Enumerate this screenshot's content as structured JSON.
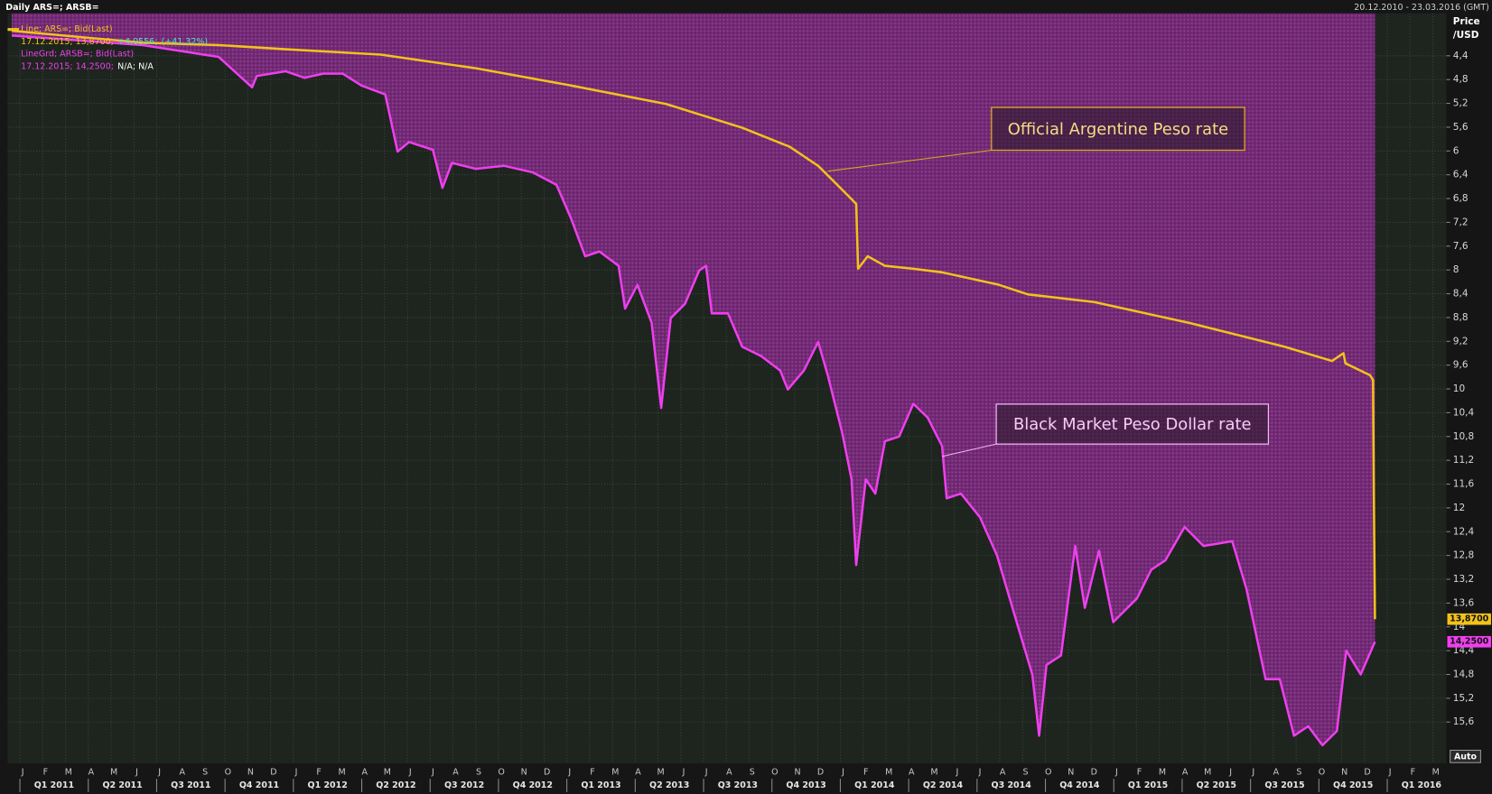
{
  "header": {
    "title": "Daily ARS=; ARSB=",
    "date_range": "20.12.2010 - 23.03.2016 (GMT)",
    "auto_button": "Auto"
  },
  "chart_data": {
    "type": "line",
    "ylabel": "Price",
    "yunit": "/USD",
    "xlim": [
      2010.955,
      2016.216
    ],
    "ylim": [
      3.75,
      16.25
    ],
    "y_inverted": true,
    "grid": true,
    "yticks": [
      {
        "value": 4.4,
        "label": "4,4"
      },
      {
        "value": 4.8,
        "label": "4,8"
      },
      {
        "value": 5.2,
        "label": "5,2"
      },
      {
        "value": 5.6,
        "label": "5,6"
      },
      6,
      {
        "value": 6.4,
        "label": "6,4"
      },
      {
        "value": 6.8,
        "label": "6,8"
      },
      {
        "value": 7.2,
        "label": "7,2"
      },
      {
        "value": 7.6,
        "label": "7,6"
      },
      8,
      {
        "value": 8.4,
        "label": "8,4"
      },
      {
        "value": 8.8,
        "label": "8,8"
      },
      {
        "value": 9.2,
        "label": "9,2"
      },
      {
        "value": 9.6,
        "label": "9,6"
      },
      10,
      {
        "value": 10.4,
        "label": "10,4"
      },
      {
        "value": 10.8,
        "label": "10,8"
      },
      {
        "value": 11.2,
        "label": "11,2"
      },
      {
        "value": 11.6,
        "label": "11,6"
      },
      12,
      {
        "value": 12.4,
        "label": "12,4"
      },
      {
        "value": 12.8,
        "label": "12,8"
      },
      {
        "value": 13.2,
        "label": "13,2"
      },
      {
        "value": 13.6,
        "label": "13,6"
      },
      14,
      {
        "value": 14.4,
        "label": "14,4"
      },
      {
        "value": 14.8,
        "label": "14,8"
      },
      {
        "value": 15.2,
        "label": "15,2"
      },
      {
        "value": 15.6,
        "label": "15,6"
      }
    ],
    "xticks": [
      {
        "value": 2011.0,
        "label": "J"
      },
      {
        "value": 2011.083,
        "label": "F"
      },
      {
        "value": 2011.167,
        "label": "M"
      },
      {
        "value": 2011.25,
        "label": "A"
      },
      {
        "value": 2011.333,
        "label": "M"
      },
      {
        "value": 2011.417,
        "label": "J"
      },
      {
        "value": 2011.5,
        "label": "J"
      },
      {
        "value": 2011.583,
        "label": "A"
      },
      {
        "value": 2011.667,
        "label": "S"
      },
      {
        "value": 2011.75,
        "label": "O"
      },
      {
        "value": 2011.833,
        "label": "N"
      },
      {
        "value": 2011.917,
        "label": "D"
      },
      {
        "value": 2012.0,
        "label": "J"
      },
      {
        "value": 2012.083,
        "label": "F"
      },
      {
        "value": 2012.167,
        "label": "M"
      },
      {
        "value": 2012.25,
        "label": "A"
      },
      {
        "value": 2012.333,
        "label": "M"
      },
      {
        "value": 2012.417,
        "label": "J"
      },
      {
        "value": 2012.5,
        "label": "J"
      },
      {
        "value": 2012.583,
        "label": "A"
      },
      {
        "value": 2012.667,
        "label": "S"
      },
      {
        "value": 2012.75,
        "label": "O"
      },
      {
        "value": 2012.833,
        "label": "N"
      },
      {
        "value": 2012.917,
        "label": "D"
      },
      {
        "value": 2013.0,
        "label": "J"
      },
      {
        "value": 2013.083,
        "label": "F"
      },
      {
        "value": 2013.167,
        "label": "M"
      },
      {
        "value": 2013.25,
        "label": "A"
      },
      {
        "value": 2013.333,
        "label": "M"
      },
      {
        "value": 2013.417,
        "label": "J"
      },
      {
        "value": 2013.5,
        "label": "J"
      },
      {
        "value": 2013.583,
        "label": "A"
      },
      {
        "value": 2013.667,
        "label": "S"
      },
      {
        "value": 2013.75,
        "label": "O"
      },
      {
        "value": 2013.833,
        "label": "N"
      },
      {
        "value": 2013.917,
        "label": "D"
      },
      {
        "value": 2014.0,
        "label": "J"
      },
      {
        "value": 2014.083,
        "label": "F"
      },
      {
        "value": 2014.167,
        "label": "M"
      },
      {
        "value": 2014.25,
        "label": "A"
      },
      {
        "value": 2014.333,
        "label": "M"
      },
      {
        "value": 2014.417,
        "label": "J"
      },
      {
        "value": 2014.5,
        "label": "J"
      },
      {
        "value": 2014.583,
        "label": "A"
      },
      {
        "value": 2014.667,
        "label": "S"
      },
      {
        "value": 2014.75,
        "label": "O"
      },
      {
        "value": 2014.833,
        "label": "N"
      },
      {
        "value": 2014.917,
        "label": "D"
      },
      {
        "value": 2015.0,
        "label": "J"
      },
      {
        "value": 2015.083,
        "label": "F"
      },
      {
        "value": 2015.167,
        "label": "M"
      },
      {
        "value": 2015.25,
        "label": "A"
      },
      {
        "value": 2015.333,
        "label": "M"
      },
      {
        "value": 2015.417,
        "label": "J"
      },
      {
        "value": 2015.5,
        "label": "J"
      },
      {
        "value": 2015.583,
        "label": "A"
      },
      {
        "value": 2015.667,
        "label": "S"
      },
      {
        "value": 2015.75,
        "label": "O"
      },
      {
        "value": 2015.833,
        "label": "N"
      },
      {
        "value": 2015.917,
        "label": "D"
      },
      {
        "value": 2016.0,
        "label": "J"
      },
      {
        "value": 2016.083,
        "label": "F"
      },
      {
        "value": 2016.167,
        "label": "M"
      }
    ],
    "quarter_ticks": [
      {
        "value": 2011.125,
        "label": "Q1 2011"
      },
      {
        "value": 2011.375,
        "label": "Q2 2011"
      },
      {
        "value": 2011.625,
        "label": "Q3 2011"
      },
      {
        "value": 2011.875,
        "label": "Q4 2011"
      },
      {
        "value": 2012.125,
        "label": "Q1 2012"
      },
      {
        "value": 2012.375,
        "label": "Q2 2012"
      },
      {
        "value": 2012.625,
        "label": "Q3 2012"
      },
      {
        "value": 2012.875,
        "label": "Q4 2012"
      },
      {
        "value": 2013.125,
        "label": "Q1 2013"
      },
      {
        "value": 2013.375,
        "label": "Q2 2013"
      },
      {
        "value": 2013.625,
        "label": "Q3 2013"
      },
      {
        "value": 2013.875,
        "label": "Q4 2013"
      },
      {
        "value": 2014.125,
        "label": "Q1 2014"
      },
      {
        "value": 2014.375,
        "label": "Q2 2014"
      },
      {
        "value": 2014.625,
        "label": "Q3 2014"
      },
      {
        "value": 2014.875,
        "label": "Q4 2014"
      },
      {
        "value": 2015.125,
        "label": "Q1 2015"
      },
      {
        "value": 2015.375,
        "label": "Q2 2015"
      },
      {
        "value": 2015.625,
        "label": "Q3 2015"
      },
      {
        "value": 2015.875,
        "label": "Q4 2015"
      },
      {
        "value": 2016.125,
        "label": "Q1 2016"
      }
    ],
    "series": [
      {
        "name": "Line; ARS=; Bid(Last)",
        "color": "#f2c21b",
        "fill_above": false,
        "details": [
          {
            "text": "17.12.2015; 13,8700;",
            "color": "#f2c21b"
          },
          {
            "text": "+4,0556;",
            "color": "#4fe3c6"
          },
          {
            "text": "(+41,32%)",
            "color": "#4fe3c6"
          }
        ],
        "value_label": "13,8700",
        "x": [
          2010.97,
          2011.449,
          2011.727,
          2011.971,
          2012.319,
          2012.667,
          2013.015,
          2013.363,
          2013.641,
          2013.815,
          2013.919,
          2013.989,
          2014.041,
          2014.058,
          2014.065,
          2014.1,
          2014.163,
          2014.267,
          2014.372,
          2014.58,
          2014.685,
          2014.928,
          2015.276,
          2015.624,
          2015.798,
          2015.84,
          2015.847,
          2015.937,
          2015.948,
          2015.951,
          2015.955
        ],
        "values": [
          3.98,
          4.18,
          4.22,
          4.29,
          4.38,
          4.61,
          4.9,
          5.21,
          5.61,
          5.93,
          6.25,
          6.57,
          6.81,
          6.89,
          7.98,
          7.77,
          7.93,
          7.98,
          8.04,
          8.25,
          8.41,
          8.54,
          8.89,
          9.29,
          9.53,
          9.4,
          9.57,
          9.77,
          9.85,
          11.76,
          13.87
        ]
      },
      {
        "name": "LineGrd; ARSB=; Bid(Last)",
        "color": "#ee3fee",
        "fill_above": true,
        "details": [
          {
            "text": "17.12.2015; 14,2500;",
            "color": "#ee3fee"
          },
          {
            "text": "N/A; N/A",
            "color": "#ffffff"
          }
        ],
        "value_label": "14,2500",
        "x": [
          2010.97,
          2011.449,
          2011.727,
          2011.849,
          2011.866,
          2011.971,
          2012.04,
          2012.11,
          2012.18,
          2012.249,
          2012.336,
          2012.381,
          2012.423,
          2012.51,
          2012.545,
          2012.58,
          2012.667,
          2012.771,
          2012.875,
          2012.962,
          2013.015,
          2013.067,
          2013.119,
          2013.189,
          2013.213,
          2013.258,
          2013.31,
          2013.345,
          2013.38,
          2013.432,
          2013.484,
          2013.509,
          2013.53,
          2013.589,
          2013.641,
          2013.711,
          2013.78,
          2013.808,
          2013.867,
          2013.919,
          2013.954,
          2014.006,
          2014.041,
          2014.058,
          2014.093,
          2014.128,
          2014.163,
          2014.215,
          2014.267,
          2014.319,
          2014.372,
          2014.389,
          2014.441,
          2014.511,
          2014.573,
          2014.65,
          2014.702,
          2014.727,
          2014.754,
          2014.807,
          2014.859,
          2014.894,
          2014.946,
          2014.998,
          2015.085,
          2015.137,
          2015.189,
          2015.259,
          2015.328,
          2015.433,
          2015.485,
          2015.555,
          2015.607,
          2015.659,
          2015.711,
          2015.763,
          2015.816,
          2015.85,
          2015.903,
          2015.955
        ],
        "values": [
          4.06,
          4.22,
          4.42,
          4.93,
          4.74,
          4.66,
          4.77,
          4.7,
          4.7,
          4.9,
          5.05,
          6.01,
          5.85,
          5.98,
          6.62,
          6.2,
          6.3,
          6.25,
          6.36,
          6.57,
          7.13,
          7.77,
          7.69,
          7.93,
          8.65,
          8.25,
          8.89,
          10.32,
          8.81,
          8.57,
          8.01,
          7.93,
          8.73,
          8.73,
          9.29,
          9.45,
          9.69,
          10.01,
          9.69,
          9.21,
          9.77,
          10.72,
          11.52,
          12.96,
          11.52,
          11.76,
          10.88,
          10.8,
          10.25,
          10.48,
          10.96,
          11.84,
          11.76,
          12.16,
          12.8,
          14.0,
          14.8,
          15.83,
          14.64,
          14.48,
          12.64,
          13.68,
          12.72,
          13.92,
          13.52,
          13.04,
          12.88,
          12.32,
          12.64,
          12.56,
          13.36,
          14.88,
          14.88,
          15.83,
          15.67,
          15.99,
          15.75,
          14.4,
          14.8,
          14.25
        ]
      }
    ],
    "annotations": [
      {
        "text": "Official Argentine Peso rate"
      },
      {
        "text": "Black Market Peso Dollar rate"
      }
    ]
  }
}
